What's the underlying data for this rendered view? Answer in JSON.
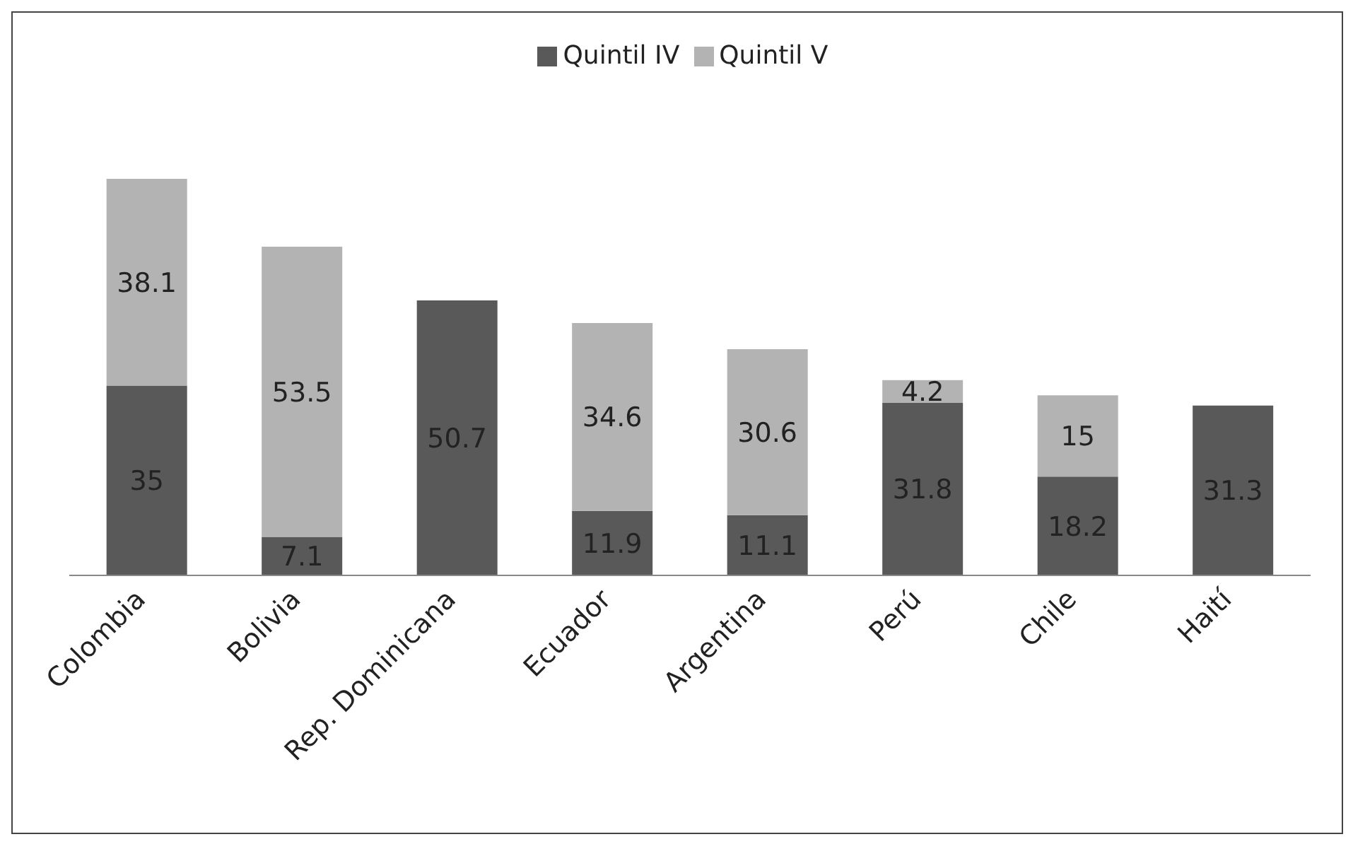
{
  "chart_data": {
    "type": "bar",
    "stacked": true,
    "categories": [
      "Colombia",
      "Bolivia",
      "Rep. Dominicana",
      "Ecuador",
      "Argentina",
      "Perú",
      "Chile",
      "Haití"
    ],
    "series": [
      {
        "name": "Quintil IV",
        "color": "#595959",
        "values": [
          35,
          7.1,
          50.7,
          11.9,
          11.1,
          31.8,
          18.2,
          31.3
        ]
      },
      {
        "name": "Quintil V",
        "color": "#b3b3b3",
        "values": [
          38.1,
          53.5,
          null,
          34.6,
          30.6,
          4.2,
          15,
          null
        ]
      }
    ],
    "data_labels": true,
    "legend": "top",
    "grid": false
  }
}
